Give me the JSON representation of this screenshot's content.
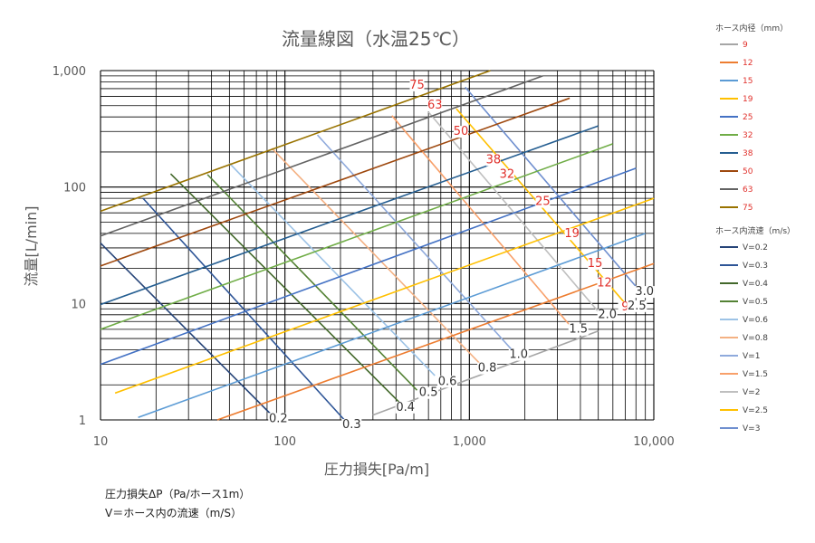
{
  "chart_data": {
    "type": "line",
    "title": "流量線図（水温25℃）",
    "xlabel": "圧力損失[Pa/m]",
    "ylabel": "流量[L/min]",
    "x_scale": "log",
    "y_scale": "log",
    "xlim": [
      10,
      10000
    ],
    "ylim": [
      1,
      1000
    ],
    "x_ticks": [
      "10",
      "100",
      "1,000",
      "10,000"
    ],
    "y_ticks": [
      "1",
      "10",
      "100",
      "1,000"
    ],
    "grid": true,
    "legend_position": "right",
    "legend_groups": [
      {
        "title": "ホース内径（mm）",
        "entries": [
          "9",
          "12",
          "15",
          "19",
          "25",
          "32",
          "38",
          "50",
          "63",
          "75"
        ]
      },
      {
        "title": "ホース内流速（m/s）",
        "entries": [
          "V=0.2",
          "V=0.3",
          "V=0.4",
          "V=0.5",
          "V=0.6",
          "V=0.8",
          "V=1",
          "V=1.5",
          "V=2",
          "V=2.5",
          "V=3"
        ]
      }
    ],
    "diameter_series": [
      {
        "name": "9",
        "color": "#a6a6a6",
        "x": [
          300,
          5000
        ],
        "y": [
          1.1,
          5.8
        ]
      },
      {
        "name": "12",
        "color": "#ed7d31",
        "x": [
          43,
          10000
        ],
        "y": [
          1.0,
          22
        ]
      },
      {
        "name": "15",
        "color": "#5b9bd5",
        "x": [
          16,
          9000
        ],
        "y": [
          1.05,
          40
        ]
      },
      {
        "name": "19",
        "color": "#ffc000",
        "x": [
          12,
          10000
        ],
        "y": [
          1.7,
          80
        ]
      },
      {
        "name": "25",
        "color": "#4472c4",
        "x": [
          10,
          8000
        ],
        "y": [
          3.0,
          145
        ]
      },
      {
        "name": "32",
        "color": "#70ad47",
        "x": [
          10,
          6000
        ],
        "y": [
          6.0,
          235
        ]
      },
      {
        "name": "38",
        "color": "#255e91",
        "x": [
          10,
          5000
        ],
        "y": [
          9.8,
          335
        ]
      },
      {
        "name": "50",
        "color": "#9e480e",
        "x": [
          10,
          3500
        ],
        "y": [
          21,
          580
        ]
      },
      {
        "name": "63",
        "color": "#636363",
        "x": [
          10,
          2500
        ],
        "y": [
          38,
          900
        ]
      },
      {
        "name": "75",
        "color": "#997300",
        "x": [
          10,
          1300
        ],
        "y": [
          62,
          1000
        ]
      }
    ],
    "velocity_series": [
      {
        "name": "V=0.2",
        "color": "#264478",
        "x": [
          10,
          90
        ],
        "y": [
          33,
          1.0
        ]
      },
      {
        "name": "V=0.3",
        "color": "#2e5597",
        "x": [
          17,
          210
        ],
        "y": [
          80,
          1.0
        ]
      },
      {
        "name": "V=0.4",
        "color": "#43682b",
        "x": [
          24,
          420
        ],
        "y": [
          130,
          1.4
        ]
      },
      {
        "name": "V=0.5",
        "color": "#548235",
        "x": [
          38,
          520
        ],
        "y": [
          128,
          1.8
        ]
      },
      {
        "name": "V=0.6",
        "color": "#9dc3e6",
        "x": [
          50,
          650
        ],
        "y": [
          160,
          2.4
        ]
      },
      {
        "name": "V=0.8",
        "color": "#f4b183",
        "x": [
          85,
          1150
        ],
        "y": [
          215,
          3.0
        ]
      },
      {
        "name": "V=1",
        "color": "#8faadc",
        "x": [
          150,
          1700
        ],
        "y": [
          280,
          4.0
        ]
      },
      {
        "name": "V=1.5",
        "color": "#f8a06a",
        "x": [
          380,
          3500
        ],
        "y": [
          410,
          6.5
        ]
      },
      {
        "name": "V=2",
        "color": "#bfbfbf",
        "x": [
          600,
          5000
        ],
        "y": [
          440,
          8.5
        ]
      },
      {
        "name": "V=2.5",
        "color": "#ffc000",
        "x": [
          850,
          7000
        ],
        "y": [
          470,
          10.0
        ]
      },
      {
        "name": "V=3",
        "color": "#6f8fcf",
        "x": [
          950,
          8500
        ],
        "y": [
          720,
          12.5
        ]
      }
    ],
    "diameter_labels": [
      {
        "text": "75",
        "x": 520,
        "y": 700
      },
      {
        "text": "63",
        "x": 650,
        "y": 470
      },
      {
        "text": "50",
        "x": 900,
        "y": 280
      },
      {
        "text": "38",
        "x": 1350,
        "y": 160
      },
      {
        "text": "32",
        "x": 1600,
        "y": 120
      },
      {
        "text": "25",
        "x": 2500,
        "y": 70
      },
      {
        "text": "19",
        "x": 3600,
        "y": 37
      },
      {
        "text": "15",
        "x": 4800,
        "y": 20.5
      },
      {
        "text": "12",
        "x": 5400,
        "y": 14
      },
      {
        "text": "9",
        "x": 7000,
        "y": 8.7
      }
    ],
    "velocity_labels": [
      {
        "text": "0.2",
        "x": 92,
        "y": 0.96
      },
      {
        "text": "0.3",
        "x": 230,
        "y": 0.85
      },
      {
        "text": "0.4",
        "x": 450,
        "y": 1.2
      },
      {
        "text": "0.5",
        "x": 600,
        "y": 1.6
      },
      {
        "text": "0.6",
        "x": 760,
        "y": 2.0
      },
      {
        "text": "0.8",
        "x": 1250,
        "y": 2.6
      },
      {
        "text": "1.0",
        "x": 1850,
        "y": 3.4
      },
      {
        "text": "1.5",
        "x": 3900,
        "y": 5.6
      },
      {
        "text": "2.0",
        "x": 5600,
        "y": 7.5
      },
      {
        "text": "2.5",
        "x": 8100,
        "y": 8.9
      },
      {
        "text": "3.0",
        "x": 8900,
        "y": 11.8
      }
    ]
  },
  "notes": [
    "圧力損失ΔP（Pa/ホース1m）",
    "V＝ホース内の流速（m/S）"
  ]
}
